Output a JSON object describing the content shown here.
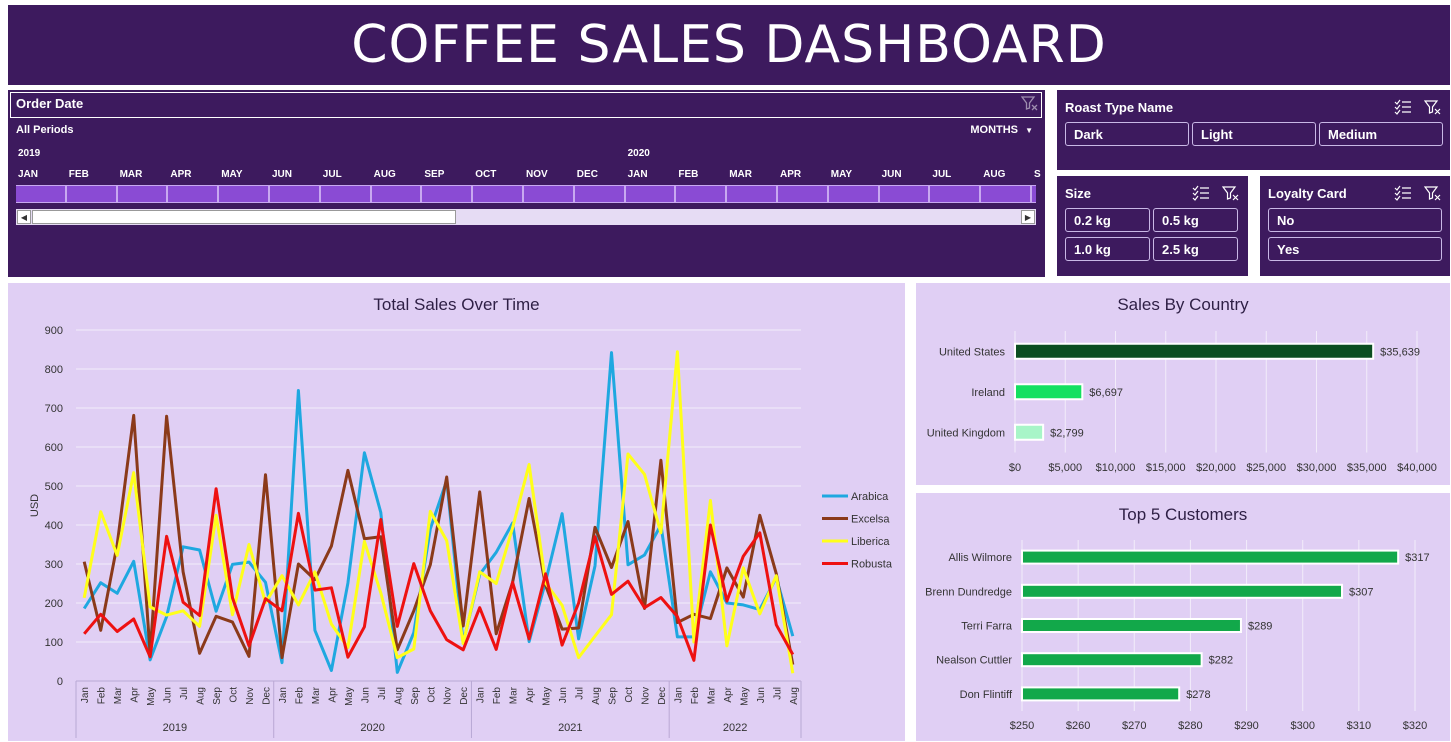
{
  "header": {
    "title": "COFFEE SALES DASHBOARD"
  },
  "timeline": {
    "title": "Order Date",
    "period_label": "All Periods",
    "level_label": "MONTHS",
    "years": [
      {
        "label": "2019",
        "start_index": 0
      },
      {
        "label": "2020",
        "start_index": 12
      }
    ],
    "months": [
      "JAN",
      "FEB",
      "MAR",
      "APR",
      "MAY",
      "JUN",
      "JUL",
      "AUG",
      "SEP",
      "OCT",
      "NOV",
      "DEC",
      "JAN",
      "FEB",
      "MAR",
      "APR",
      "MAY",
      "JUN",
      "JUL",
      "AUG",
      "S"
    ]
  },
  "roast_slicer": {
    "title": "Roast Type Name",
    "items": [
      "Dark",
      "Light",
      "Medium"
    ]
  },
  "size_slicer": {
    "title": "Size",
    "items": [
      "0.2 kg",
      "0.5 kg",
      "1.0 kg",
      "2.5 kg"
    ]
  },
  "loyalty_slicer": {
    "title": "Loyalty Card",
    "items": [
      "No",
      "Yes"
    ]
  },
  "colors": {
    "panel_dark": "#3d1a5e",
    "panel_light": "#e0cff4",
    "arabica": "#1fa8e0",
    "excelsa": "#8b3a1a",
    "liberica": "#ffff1a",
    "robusta": "#ee1111",
    "us_bar": "#0b4d21",
    "ireland_bar": "#14e060",
    "uk_bar": "#a8f5c8",
    "customer_bar": "#12a84a"
  },
  "chart_data": [
    {
      "type": "line",
      "title": "Total Sales Over Time",
      "xlabel": "",
      "ylabel": "USD",
      "ylim": [
        0,
        900
      ],
      "yticks": [
        "0",
        "100",
        "200",
        "300",
        "400",
        "500",
        "600",
        "700",
        "800",
        "900"
      ],
      "grid": true,
      "legend": "right",
      "years": [
        {
          "label": "2019",
          "count": 12
        },
        {
          "label": "2020",
          "count": 12
        },
        {
          "label": "2021",
          "count": 12
        },
        {
          "label": "2022",
          "count": 8
        }
      ],
      "categories": [
        "Jan",
        "Feb",
        "Mar",
        "Apr",
        "May",
        "Jun",
        "Jul",
        "Aug",
        "Sep",
        "Oct",
        "Nov",
        "Dec",
        "Jan",
        "Feb",
        "Mar",
        "Apr",
        "May",
        "Jun",
        "Jul",
        "Aug",
        "Sep",
        "Oct",
        "Nov",
        "Dec",
        "Jan",
        "Feb",
        "Mar",
        "Apr",
        "May",
        "Jun",
        "Jul",
        "Aug",
        "Sep",
        "Oct",
        "Nov",
        "Dec",
        "Jan",
        "Feb",
        "Mar",
        "Apr",
        "May",
        "Jun",
        "Jul",
        "Aug"
      ],
      "series": [
        {
          "name": "Arabica",
          "values": [
            186,
            252,
            225,
            307,
            54,
            165,
            344,
            336,
            179,
            299,
            305,
            253,
            47,
            745,
            130,
            27,
            251,
            585,
            432,
            22,
            124,
            390,
            514,
            98,
            273,
            330,
            405,
            101,
            255,
            429,
            108,
            295,
            842,
            298,
            323,
            400,
            113,
            113,
            280,
            200,
            195,
            183,
            265,
            115
          ]
        },
        {
          "name": "Excelsa",
          "values": [
            306,
            130,
            350,
            681,
            70,
            679,
            280,
            71,
            166,
            151,
            63,
            529,
            60,
            300,
            260,
            346,
            540,
            365,
            370,
            80,
            180,
            298,
            523,
            141,
            485,
            121,
            253,
            468,
            245,
            133,
            136,
            394,
            291,
            409,
            186,
            566,
            150,
            171,
            160,
            290,
            215,
            425,
            275,
            42
          ]
        },
        {
          "name": "Liberica",
          "values": [
            213,
            434,
            322,
            534,
            190,
            169,
            180,
            140,
            425,
            170,
            350,
            201,
            270,
            195,
            280,
            146,
            86,
            358,
            226,
            60,
            82,
            435,
            360,
            96,
            280,
            250,
            393,
            555,
            251,
            194,
            60,
            115,
            170,
            582,
            530,
            380,
            844,
            100,
            463,
            90,
            290,
            172,
            270,
            20
          ]
        },
        {
          "name": "Robusta",
          "values": [
            121,
            171,
            127,
            159,
            62,
            371,
            202,
            168,
            493,
            213,
            90,
            211,
            180,
            430,
            233,
            239,
            61,
            139,
            414,
            140,
            301,
            180,
            106,
            80,
            188,
            81,
            253,
            108,
            275,
            92,
            200,
            370,
            222,
            256,
            188,
            214,
            165,
            53,
            400,
            205,
            320,
            380,
            144,
            68
          ]
        }
      ]
    },
    {
      "type": "bar",
      "title": "Sales By Country",
      "categories": [
        "United States",
        "Ireland",
        "United Kingdom"
      ],
      "values": [
        35639,
        6697,
        2799
      ],
      "data_labels": [
        "$35,639",
        "$6,697",
        "$2,799"
      ],
      "xlim": [
        0,
        40000
      ],
      "xticks": [
        "$0",
        "$5,000",
        "$10,000",
        "$15,000",
        "$20,000",
        "$25,000",
        "$30,000",
        "$35,000",
        "$40,000"
      ]
    },
    {
      "type": "bar",
      "title": "Top 5 Customers",
      "categories": [
        "Allis Wilmore",
        "Brenn Dundredge",
        "Terri Farra",
        "Nealson Cuttler",
        "Don Flintiff"
      ],
      "values": [
        317,
        307,
        289,
        282,
        278
      ],
      "data_labels": [
        "$317",
        "$307",
        "$289",
        "$282",
        "$278"
      ],
      "xlim": [
        250,
        320
      ],
      "xticks": [
        "$250",
        "$260",
        "$270",
        "$280",
        "$290",
        "$300",
        "$310",
        "$320"
      ]
    }
  ]
}
